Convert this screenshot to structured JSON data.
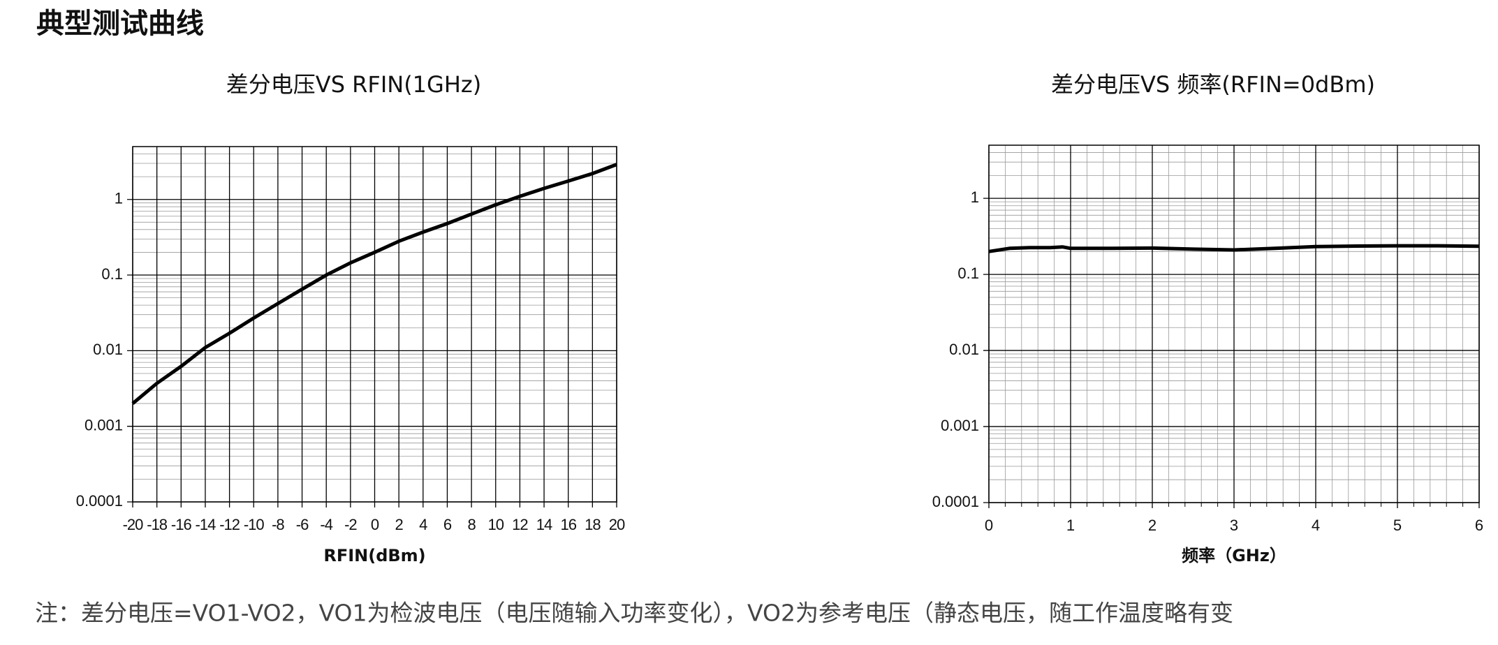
{
  "heading": "典型测试曲线",
  "note": "注：差分电压=VO1-VO2，VO1为检波电压（电压随输入功率变化），VO2为参考电压（静态电压，随工作温度略有变",
  "chart_data": [
    {
      "type": "line",
      "title": "差分电压VS RFIN(1GHz)",
      "x_label": "RFIN(dBm)",
      "x": [
        -20,
        -18,
        -16,
        -14,
        -12,
        -10,
        -8,
        -6,
        -4,
        -2,
        0,
        2,
        4,
        6,
        8,
        10,
        12,
        14,
        16,
        18,
        20
      ],
      "series": [
        {
          "name": "差分电压",
          "color": "#000000",
          "values": [
            0.002,
            0.0037,
            0.0062,
            0.011,
            0.017,
            0.027,
            0.042,
            0.065,
            0.1,
            0.145,
            0.2,
            0.28,
            0.37,
            0.48,
            0.64,
            0.85,
            1.1,
            1.4,
            1.75,
            2.2,
            2.9
          ]
        }
      ],
      "xlim": [
        -20,
        20
      ],
      "xticks": [
        -20,
        -18,
        -16,
        -14,
        -12,
        -10,
        -8,
        -6,
        -4,
        -2,
        0,
        2,
        4,
        6,
        8,
        10,
        12,
        14,
        16,
        18,
        20
      ],
      "ylim": [
        0.0001,
        5
      ],
      "yticks": [
        0.0001,
        0.001,
        0.01,
        0.1,
        1
      ],
      "log_y": true,
      "grid": true,
      "x_minor_grid": false
    },
    {
      "type": "line",
      "title": "差分电压VS 频率(RFIN=0dBm)",
      "x_label": "频率（GHz）",
      "x": [
        0,
        0.25,
        0.5,
        0.75,
        0.9,
        1,
        1.5,
        2,
        2.5,
        3,
        3.5,
        4,
        4.5,
        5,
        5.5,
        6
      ],
      "series": [
        {
          "name": "差分电压",
          "color": "#000000",
          "values": [
            0.2,
            0.22,
            0.225,
            0.225,
            0.23,
            0.22,
            0.22,
            0.222,
            0.215,
            0.21,
            0.22,
            0.232,
            0.236,
            0.238,
            0.238,
            0.235
          ]
        }
      ],
      "xlim": [
        0,
        6
      ],
      "xticks": [
        0,
        1,
        2,
        3,
        4,
        5,
        6
      ],
      "ylim": [
        0.0001,
        5
      ],
      "yticks": [
        0.0001,
        0.001,
        0.01,
        0.1,
        1
      ],
      "log_y": true,
      "grid": true,
      "x_minor_grid": true
    }
  ]
}
